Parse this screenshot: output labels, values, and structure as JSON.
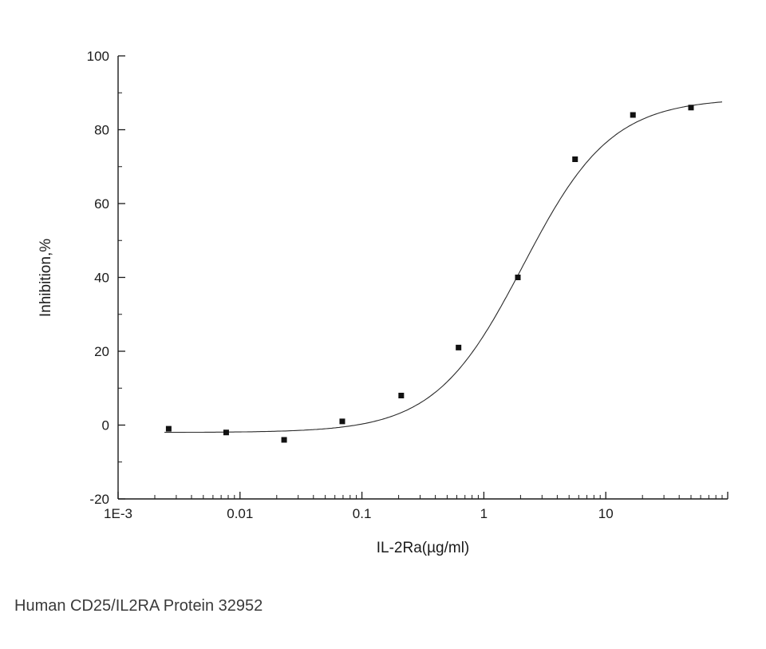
{
  "caption": "Human CD25/IL2RA Protein 32952",
  "chart_data": {
    "type": "scatter",
    "title": "",
    "xlabel": "IL-2Ra(µg/ml)",
    "ylabel": "Inhibition,%",
    "x_scale": "log",
    "xlim": [
      0.001,
      100
    ],
    "ylim": [
      -20,
      100
    ],
    "x_ticks": [
      0.001,
      0.01,
      0.1,
      1,
      10,
      100
    ],
    "x_tick_labels": [
      "1E-3",
      "0.01",
      "0.1",
      "1",
      "10",
      ""
    ],
    "y_ticks": [
      -20,
      0,
      20,
      40,
      60,
      80,
      100
    ],
    "y_minor_step": 10,
    "grid": false,
    "legend": "none",
    "marker": "square",
    "points": [
      {
        "x": 0.0026,
        "y": -1
      },
      {
        "x": 0.0077,
        "y": -2
      },
      {
        "x": 0.023,
        "y": -4
      },
      {
        "x": 0.069,
        "y": 1
      },
      {
        "x": 0.21,
        "y": 8
      },
      {
        "x": 0.62,
        "y": 21
      },
      {
        "x": 1.9,
        "y": 40
      },
      {
        "x": 5.6,
        "y": 72
      },
      {
        "x": 16.7,
        "y": 84
      },
      {
        "x": 50,
        "y": 86
      }
    ],
    "fit_curve": {
      "model": "4PL",
      "bottom": -2,
      "top": 88.5,
      "ec50": 2.1,
      "hill": 1.2
    },
    "curve_range": [
      0.0024,
      90
    ],
    "colors": {
      "axis": "#1a1a1a",
      "line": "#2b2b2b",
      "marker": "#111111",
      "text": "#1a1a1a"
    }
  }
}
